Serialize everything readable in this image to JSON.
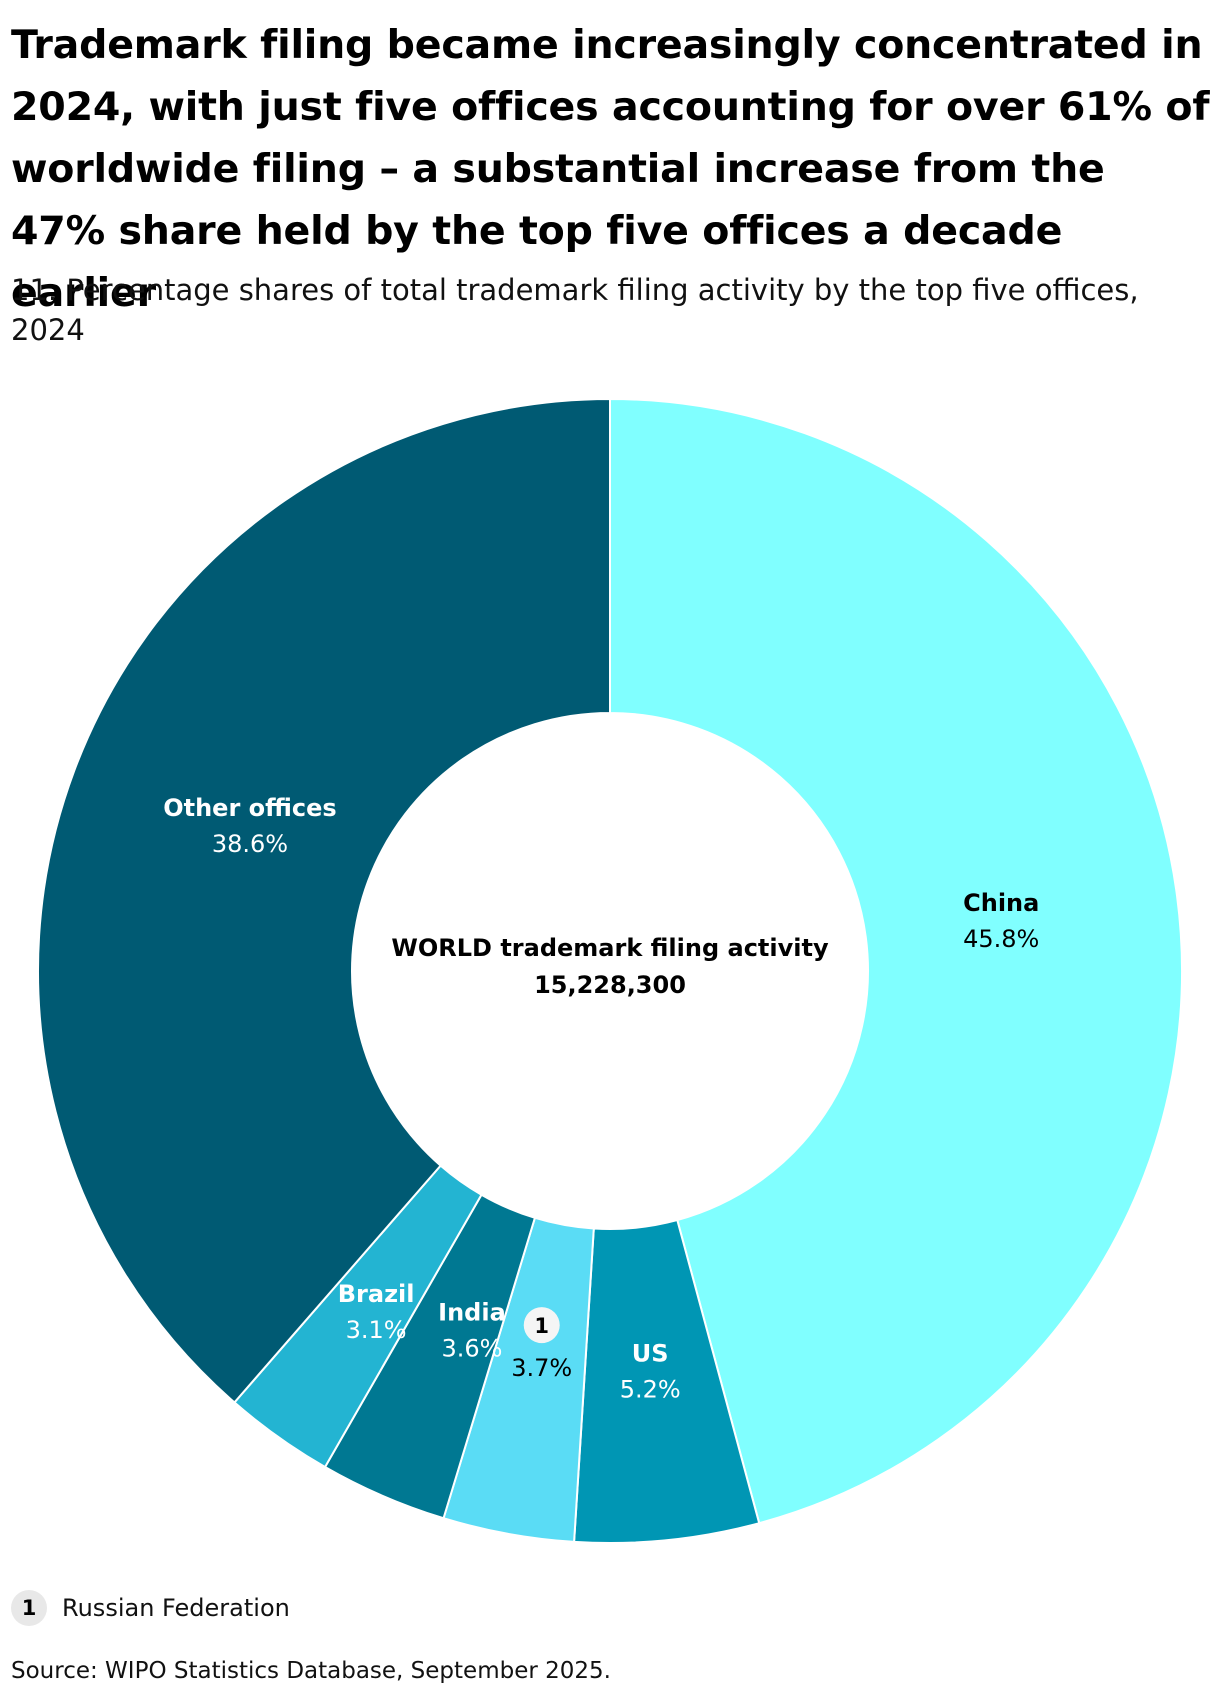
{
  "title": "Trademark filing became increasingly concentrated in 2024, with just five offices accounting for over 61% of worldwide filing – a substantial increase from the 47% share held by the top five offices a decade earlier",
  "subtitle": "11. Percentage shares of total trademark filing activity by the top five offices, 2024",
  "center": {
    "line1": "WORLD trademark filing activity",
    "line2": "15,228,300"
  },
  "chart_data": {
    "type": "pie",
    "donut": true,
    "start": "12 o'clock",
    "direction": "clockwise",
    "slices": [
      {
        "label": "China",
        "badge": "",
        "value": 45.8,
        "value_label": "45.8%",
        "color": "#80ffff",
        "text_color": "#000000"
      },
      {
        "label": "US",
        "badge": "",
        "value": 5.2,
        "value_label": "5.2%",
        "color": "#0096b4",
        "text_color": "#ffffff"
      },
      {
        "label": "",
        "badge": "1",
        "value": 3.7,
        "value_label": "3.7%",
        "color": "#5adcf5",
        "text_color": "#000000"
      },
      {
        "label": "India",
        "badge": "",
        "value": 3.6,
        "value_label": "3.6%",
        "color": "#007892",
        "text_color": "#ffffff"
      },
      {
        "label": "Brazil",
        "badge": "",
        "value": 3.1,
        "value_label": "3.1%",
        "color": "#23b4d2",
        "text_color": "#ffffff"
      },
      {
        "label": "Other offices",
        "badge": "",
        "value": 38.6,
        "value_label": "38.6%",
        "color": "#005a73",
        "text_color": "#ffffff"
      }
    ]
  },
  "legend": {
    "badge": "1",
    "label": "Russian Federation"
  },
  "source": "Source: WIPO Statistics Database, September 2025."
}
